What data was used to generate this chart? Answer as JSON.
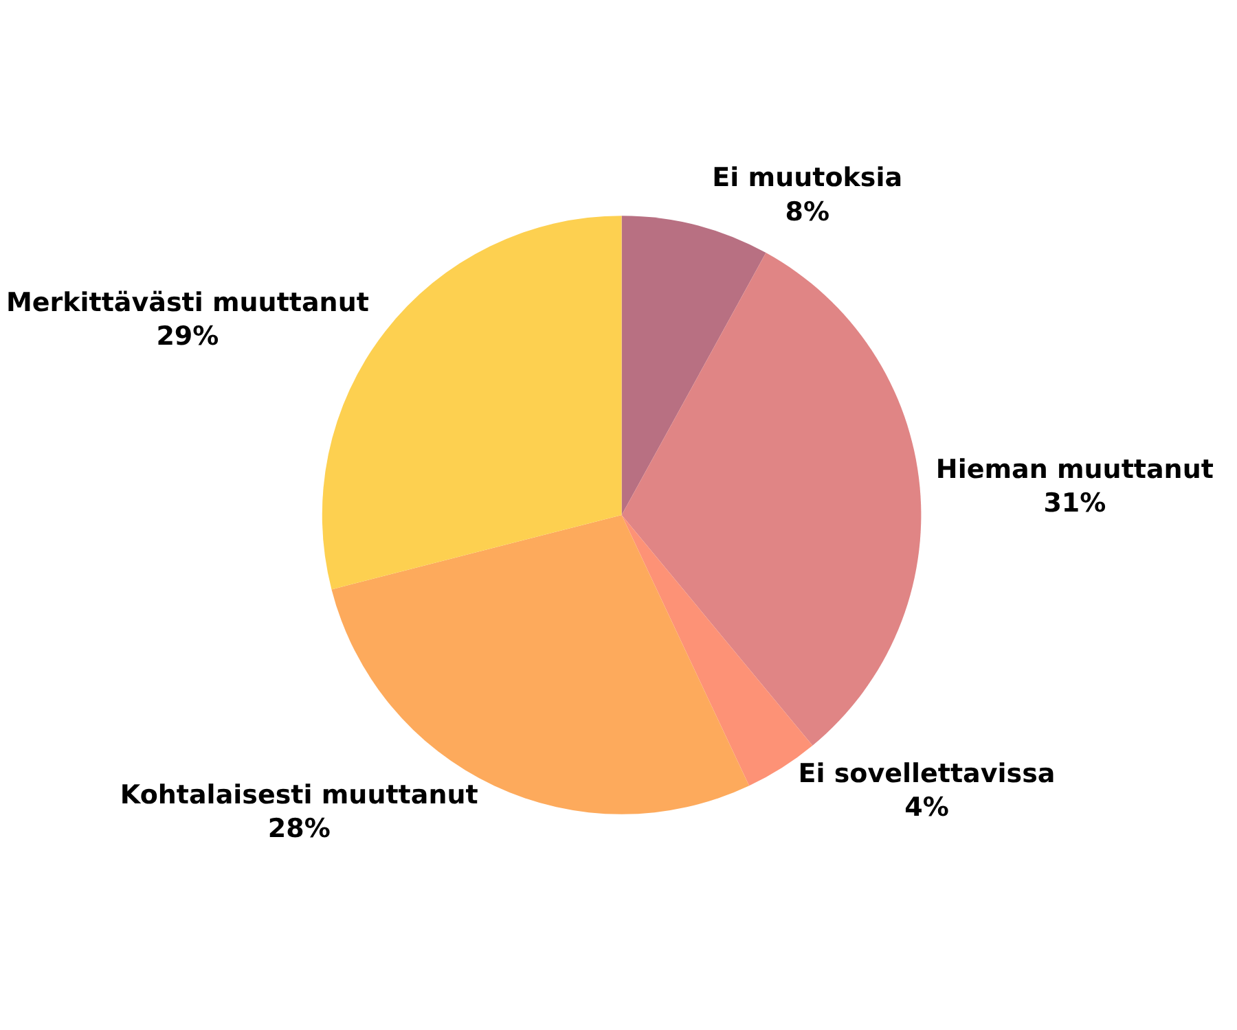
{
  "chart_data": {
    "type": "pie",
    "categories": [
      "Ei muutoksia",
      "Hieman muuttanut",
      "Ei sovellettavissa",
      "Kohtalaisesti muuttanut",
      "Merkittävästi muuttanut"
    ],
    "values": [
      8,
      31,
      4,
      28,
      29
    ],
    "value_labels": [
      "8%",
      "31%",
      "4%",
      "28%",
      "29%"
    ],
    "colors": [
      "#b87082",
      "#e08585",
      "#fd9276",
      "#fdaa5c",
      "#fdd050"
    ],
    "legend": false
  }
}
